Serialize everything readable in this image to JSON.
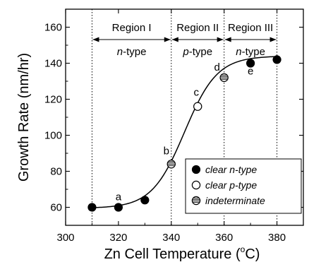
{
  "chart_data": {
    "type": "scatter",
    "xlabel": "Zn Cell Temperature (",
    "xlabel_degree": "o",
    "xlabel_unit": "C)",
    "ylabel": "Growth Rate (nm/hr)",
    "xlim": [
      300,
      390
    ],
    "ylim": [
      50,
      170
    ],
    "x_ticks": [
      "300",
      "320",
      "340",
      "360",
      "380"
    ],
    "y_ticks": [
      "60",
      "80",
      "100",
      "120",
      "140",
      "160"
    ],
    "grid": false,
    "legend_position": "lower-right",
    "region_boundaries": [
      310,
      340,
      360,
      380
    ],
    "regions": [
      {
        "name": "Region I",
        "type_prefix": "n",
        "type_suffix": "-type",
        "from": 310,
        "to": 340
      },
      {
        "name": "Region II",
        "type_prefix": "p",
        "type_suffix": "-type",
        "from": 340,
        "to": 360
      },
      {
        "name": "Region III",
        "type_prefix": "n",
        "type_suffix": "-type",
        "from": 360,
        "to": 380
      }
    ],
    "series": [
      {
        "name": "clear n-type",
        "legend_prefix": "clear ",
        "legend_italic": "n",
        "legend_suffix": "-type",
        "marker": "filled",
        "points": [
          {
            "x": 310,
            "y": 60
          },
          {
            "x": 320,
            "y": 60,
            "label": "a"
          },
          {
            "x": 330,
            "y": 64
          },
          {
            "x": 370,
            "y": 140,
            "label": "e"
          },
          {
            "x": 380,
            "y": 142
          }
        ]
      },
      {
        "name": "clear p-type",
        "legend_prefix": "clear ",
        "legend_italic": "p",
        "legend_suffix": "-type",
        "marker": "open",
        "points": [
          {
            "x": 350,
            "y": 116,
            "label": "c"
          }
        ]
      },
      {
        "name": "indeterminate",
        "legend_prefix": "",
        "legend_italic": "indeterminate",
        "legend_suffix": "",
        "marker": "hatched",
        "points": [
          {
            "x": 340,
            "y": 84,
            "label": "b"
          },
          {
            "x": 360,
            "y": 132,
            "label": "d"
          }
        ]
      }
    ],
    "fit_curve": {
      "type": "sigmoid",
      "x_min": 310,
      "x_max": 380,
      "y_low": 59.5,
      "y_high": 144,
      "midpoint": 345,
      "width": 6.2
    }
  }
}
